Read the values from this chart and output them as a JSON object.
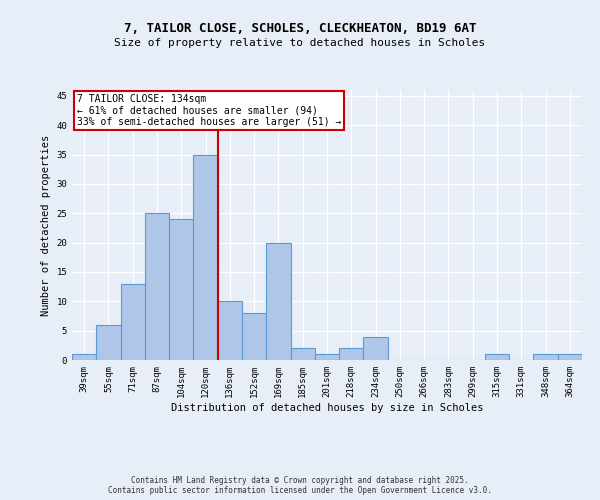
{
  "title_line1": "7, TAILOR CLOSE, SCHOLES, CLECKHEATON, BD19 6AT",
  "title_line2": "Size of property relative to detached houses in Scholes",
  "xlabel": "Distribution of detached houses by size in Scholes",
  "ylabel": "Number of detached properties",
  "categories": [
    "39sqm",
    "55sqm",
    "71sqm",
    "87sqm",
    "104sqm",
    "120sqm",
    "136sqm",
    "152sqm",
    "169sqm",
    "185sqm",
    "201sqm",
    "218sqm",
    "234sqm",
    "250sqm",
    "266sqm",
    "283sqm",
    "299sqm",
    "315sqm",
    "331sqm",
    "348sqm",
    "364sqm"
  ],
  "values": [
    1,
    6,
    13,
    25,
    24,
    35,
    10,
    8,
    20,
    2,
    1,
    2,
    4,
    0,
    0,
    0,
    0,
    1,
    0,
    1,
    1
  ],
  "bar_color": "#aec6e8",
  "bar_edge_color": "#5b9bd5",
  "highlight_index": 5,
  "highlight_line_color": "#cc0000",
  "annotation_text": "7 TAILOR CLOSE: 134sqm\n← 61% of detached houses are smaller (94)\n33% of semi-detached houses are larger (51) →",
  "annotation_box_color": "#ffffff",
  "annotation_box_edge_color": "#cc0000",
  "ylim": [
    0,
    46
  ],
  "yticks": [
    0,
    5,
    10,
    15,
    20,
    25,
    30,
    35,
    40,
    45
  ],
  "background_color": "#e8eef7",
  "grid_color": "#ffffff",
  "footer_line1": "Contains HM Land Registry data © Crown copyright and database right 2025.",
  "footer_line2": "Contains public sector information licensed under the Open Government Licence v3.0.",
  "title_fontsize": 9,
  "subtitle_fontsize": 8,
  "axis_label_fontsize": 7.5,
  "tick_fontsize": 6.5,
  "annotation_fontsize": 7,
  "footer_fontsize": 5.5
}
